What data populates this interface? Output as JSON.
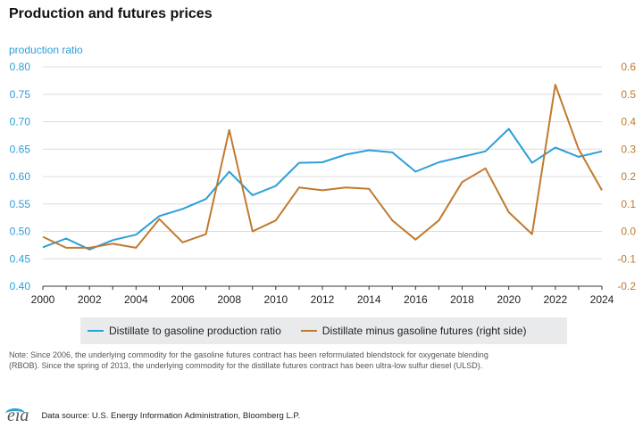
{
  "header": {
    "title": "Production and futures prices"
  },
  "chart_data": {
    "type": "line",
    "title": "Production and futures prices",
    "left_axis_label": "production ratio",
    "x": [
      2000,
      2001,
      2002,
      2003,
      2004,
      2005,
      2006,
      2007,
      2008,
      2009,
      2010,
      2011,
      2012,
      2013,
      2014,
      2015,
      2016,
      2017,
      2018,
      2019,
      2020,
      2021,
      2022,
      2023,
      2024
    ],
    "x_ticks": [
      "2000",
      "2002",
      "2004",
      "2006",
      "2008",
      "2010",
      "2012",
      "2014",
      "2016",
      "2018",
      "2020",
      "2022",
      "2024"
    ],
    "y_left_ticks": [
      "0.40",
      "0.45",
      "0.50",
      "0.55",
      "0.60",
      "0.65",
      "0.70",
      "0.75",
      "0.80"
    ],
    "y_right_ticks": [
      "-0.2",
      "-0.1",
      "0.0",
      "0.1",
      "0.2",
      "0.3",
      "0.4",
      "0.5",
      "0.6"
    ],
    "ylim_left": [
      0.4,
      0.8
    ],
    "ylim_right": [
      -0.2,
      0.6
    ],
    "grid": true,
    "legend_position": "bottom",
    "series": [
      {
        "name": "Distillate to gasoline production ratio",
        "axis": "left",
        "color": "#2b9fd8",
        "values": [
          0.471,
          0.487,
          0.467,
          0.484,
          0.494,
          0.528,
          0.541,
          0.559,
          0.609,
          0.566,
          0.583,
          0.625,
          0.626,
          0.64,
          0.648,
          0.644,
          0.609,
          0.626,
          0.636,
          0.646,
          0.687,
          0.625,
          0.653,
          0.636,
          0.646
        ]
      },
      {
        "name": "Distillate minus gasoline futures (right side)",
        "axis": "right",
        "color": "#c07a2e",
        "values": [
          -0.02,
          -0.06,
          -0.06,
          -0.045,
          -0.06,
          0.045,
          -0.04,
          -0.01,
          0.37,
          0.0,
          0.04,
          0.16,
          0.15,
          0.16,
          0.155,
          0.04,
          -0.03,
          0.04,
          0.18,
          0.23,
          0.07,
          -0.01,
          0.535,
          0.3,
          0.15
        ]
      }
    ]
  },
  "legend": {
    "items": [
      {
        "label": "Distillate to gasoline production ratio",
        "color": "#2b9fd8"
      },
      {
        "label": "Distillate minus gasoline futures (right side)",
        "color": "#c07a2e"
      }
    ]
  },
  "note": "Note: Since 2006, the underlying commodity for the gasoline futures contract has been reformulated blendstock for oxygenate blending (RBOB). Since the spring of 2013, the underlying commodity for the distillate futures contract has been ultra-low sulfur diesel (ULSD).",
  "footer": {
    "logo_text": "eia",
    "source": "Data source: U.S. Energy Information Administration, Bloomberg L.P."
  },
  "colors": {
    "left_axis": "#2b9fd8",
    "right_axis": "#c07a2e",
    "grid": "#dcdcdc"
  }
}
